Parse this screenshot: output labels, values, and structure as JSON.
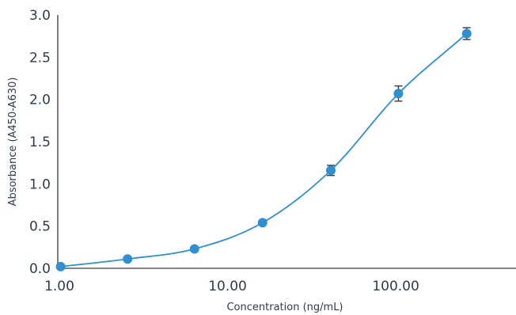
{
  "chart_data": {
    "type": "scatter",
    "title": "",
    "xlabel": "Concentration (ng/mL)",
    "ylabel": "Absorbance (A450-A630)",
    "xscale": "log",
    "xlim": [
      1.0,
      530
    ],
    "ylim": [
      0,
      3.0
    ],
    "x_ticks": [
      1,
      10,
      100
    ],
    "x_tick_labels": [
      "1.00",
      "10.00",
      "100.00"
    ],
    "y_ticks": [
      0,
      0.5,
      1.0,
      1.5,
      2.0,
      2.5,
      3.0
    ],
    "y_tick_labels": [
      "0.0",
      "0.5",
      "1.0",
      "1.5",
      "2.0",
      "2.5",
      "3.0"
    ],
    "grid": false,
    "legend": "none",
    "fit_curve": true,
    "colors": {
      "marker": "#2f8fd0",
      "curve": "#2f8fd0",
      "axis": "#2f3b4c",
      "error_bar": "#3a3a3a"
    },
    "series": [
      {
        "x": [
          1.04,
          2.6,
          6.5,
          16.5,
          42.0,
          106.0,
          270.0
        ],
        "y": [
          0.02,
          0.11,
          0.23,
          0.54,
          1.16,
          2.07,
          2.78
        ],
        "error": [
          0.0,
          0.0,
          0.0,
          0.0,
          0.06,
          0.09,
          0.07
        ]
      }
    ]
  }
}
